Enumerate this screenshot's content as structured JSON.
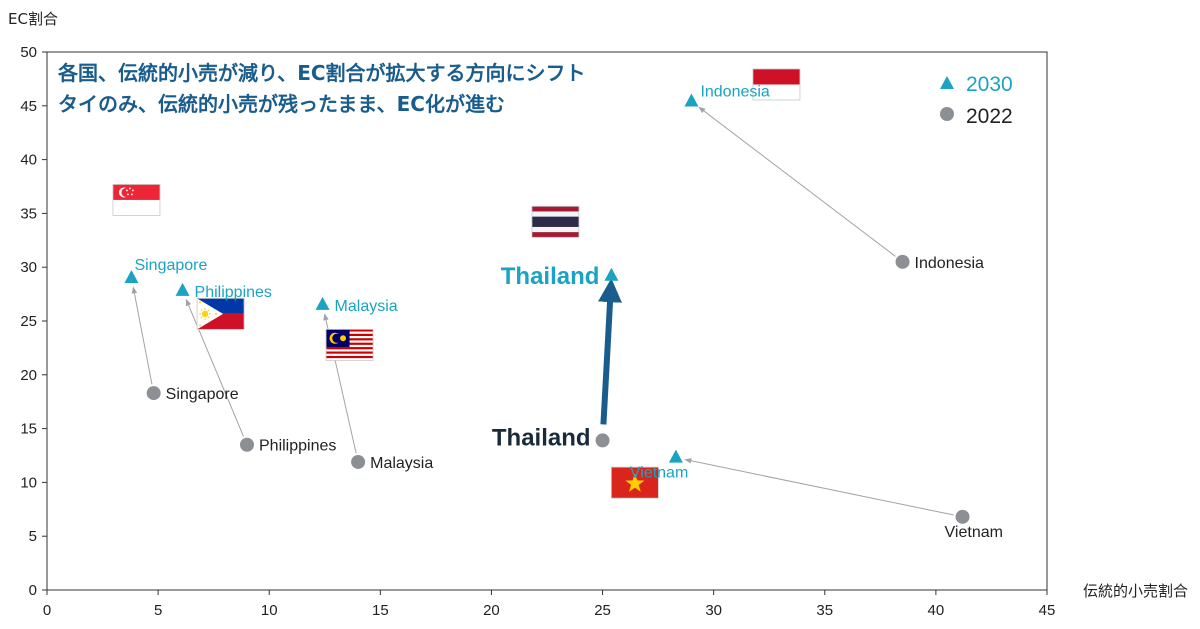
{
  "chart_data": {
    "type": "scatter",
    "ylabel": "EC割合",
    "xlabel": "伝統的小売割合",
    "xlim": [
      0,
      45
    ],
    "ylim": [
      0,
      50
    ],
    "xticks": [
      0,
      5,
      10,
      15,
      20,
      25,
      30,
      35,
      40,
      45
    ],
    "yticks": [
      0,
      5,
      10,
      15,
      20,
      25,
      30,
      35,
      40,
      45,
      50
    ],
    "grid": false,
    "legend_position": "top-right",
    "annotations": [
      "各国、伝統的小売が減り、EC割合が拡大する方向にシフト",
      "タイのみ、伝統的小売が残ったまま、EC化が進む"
    ],
    "series": [
      {
        "name": "2030",
        "marker": "triangle",
        "color": "#1aa3c2"
      },
      {
        "name": "2022",
        "marker": "circle",
        "color": "#8c8f94"
      }
    ],
    "points": [
      {
        "country": "Singapore",
        "x2022": 4.8,
        "y2022": 18.3,
        "x2030": 3.8,
        "y2030": 29.0
      },
      {
        "country": "Philippines",
        "x2022": 9.0,
        "y2022": 13.5,
        "x2030": 6.1,
        "y2030": 27.8
      },
      {
        "country": "Malaysia",
        "x2022": 14.0,
        "y2022": 11.9,
        "x2030": 12.4,
        "y2030": 26.5
      },
      {
        "country": "Thailand",
        "x2022": 25.0,
        "y2022": 13.9,
        "x2030": 25.4,
        "y2030": 29.2
      },
      {
        "country": "Vietnam",
        "x2022": 41.2,
        "y2022": 6.8,
        "x2030": 28.3,
        "y2030": 12.3
      },
      {
        "country": "Indonesia",
        "x2022": 38.5,
        "y2022": 30.5,
        "x2030": 29.0,
        "y2030": 45.4
      }
    ]
  },
  "colors": {
    "marker_2030": "#1aa3c2",
    "marker_2022": "#8c8f94",
    "annotation": "#1a5d8c",
    "thailand_arrow": "#1a5d8c",
    "connector": "#a0a3a8"
  }
}
